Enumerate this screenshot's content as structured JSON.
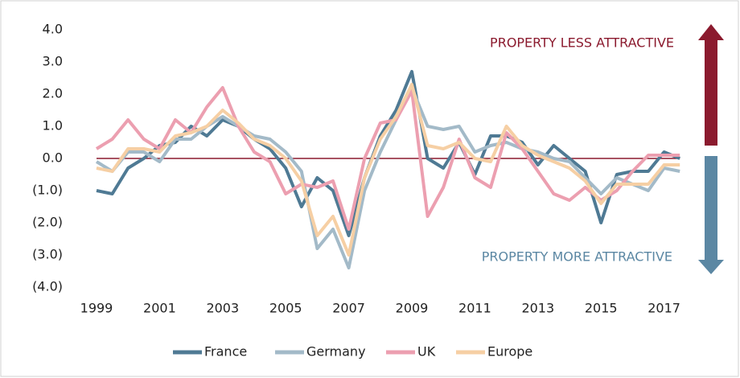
{
  "chart_data": {
    "type": "line",
    "annotations": [
      "PROPERTY LESS ATTRACTIVE",
      "PROPERTY MORE ATTRACTIVE"
    ],
    "x": [
      1999,
      1999.5,
      2000,
      2000.5,
      2001,
      2001.5,
      2002,
      2002.5,
      2003,
      2003.5,
      2004,
      2004.5,
      2005,
      2005.5,
      2006,
      2006.5,
      2007,
      2007.5,
      2008,
      2008.5,
      2009,
      2009.5,
      2010,
      2010.5,
      2011,
      2011.5,
      2012,
      2012.5,
      2013,
      2013.5,
      2014,
      2014.5,
      2015,
      2015.5,
      2016,
      2016.5,
      2017,
      2017.5
    ],
    "series": [
      {
        "name": "France",
        "color": "#4f7a94",
        "values": [
          -1.0,
          -1.1,
          -0.3,
          0.0,
          0.4,
          0.5,
          1.0,
          0.7,
          1.2,
          1.0,
          0.6,
          0.3,
          -0.3,
          -1.5,
          -0.6,
          -1.0,
          -2.4,
          -0.6,
          0.7,
          1.5,
          2.7,
          0.0,
          -0.3,
          0.5,
          -0.5,
          0.7,
          0.7,
          0.5,
          -0.2,
          0.4,
          0.0,
          -0.4,
          -2.0,
          -0.5,
          -0.4,
          -0.4,
          0.2,
          0.0
        ]
      },
      {
        "name": "Germany",
        "color": "#a3bac8",
        "values": [
          -0.1,
          -0.4,
          0.2,
          0.2,
          -0.1,
          0.6,
          0.6,
          1.0,
          1.3,
          1.0,
          0.7,
          0.6,
          0.2,
          -0.4,
          -2.8,
          -2.2,
          -3.4,
          -1.0,
          0.2,
          1.2,
          2.2,
          1.0,
          0.9,
          1.0,
          0.2,
          0.4,
          0.5,
          0.3,
          0.2,
          0.0,
          -0.1,
          -0.6,
          -1.1,
          -0.6,
          -0.8,
          -1.0,
          -0.3,
          -0.4
        ]
      },
      {
        "name": "UK",
        "color": "#ec9fb0",
        "values": [
          0.3,
          0.6,
          1.2,
          0.6,
          0.3,
          1.2,
          0.8,
          1.6,
          2.2,
          1.0,
          0.2,
          -0.1,
          -1.1,
          -0.8,
          -0.9,
          -0.7,
          -2.2,
          0.0,
          1.1,
          1.2,
          2.1,
          -1.8,
          -0.9,
          0.6,
          -0.6,
          -0.9,
          0.8,
          0.3,
          -0.4,
          -1.1,
          -1.3,
          -0.9,
          -1.3,
          -1.0,
          -0.4,
          0.1,
          0.1,
          0.1
        ]
      },
      {
        "name": "Europe",
        "color": "#f6cfa4",
        "values": [
          -0.3,
          -0.4,
          0.3,
          0.3,
          0.2,
          0.7,
          0.8,
          1.0,
          1.5,
          1.1,
          0.6,
          0.4,
          0.0,
          -0.7,
          -2.4,
          -1.8,
          -3.0,
          -0.6,
          0.6,
          1.3,
          2.3,
          0.4,
          0.3,
          0.5,
          0.0,
          -0.1,
          1.0,
          0.4,
          0.1,
          -0.1,
          -0.3,
          -0.7,
          -1.4,
          -0.8,
          -0.8,
          -0.8,
          -0.2,
          -0.2
        ]
      }
    ],
    "xlim": [
      1999,
      2018
    ],
    "xticks": [
      1999,
      2001,
      2003,
      2005,
      2007,
      2009,
      2011,
      2013,
      2015,
      2017
    ],
    "ylim": [
      -4,
      4
    ],
    "yticks": [
      {
        "value": -4,
        "label": "(4.0)"
      },
      {
        "value": -3,
        "label": "(3.0)"
      },
      {
        "value": -2,
        "label": "(2.0)"
      },
      {
        "value": -1,
        "label": "(1.0)"
      },
      {
        "value": 0,
        "label": "0.0"
      },
      {
        "value": 1,
        "label": "1.0"
      },
      {
        "value": 2,
        "label": "2.0"
      },
      {
        "value": 3,
        "label": "3.0"
      },
      {
        "value": 4,
        "label": "4.0"
      }
    ],
    "zero_line_color": "#8b1a2e"
  }
}
